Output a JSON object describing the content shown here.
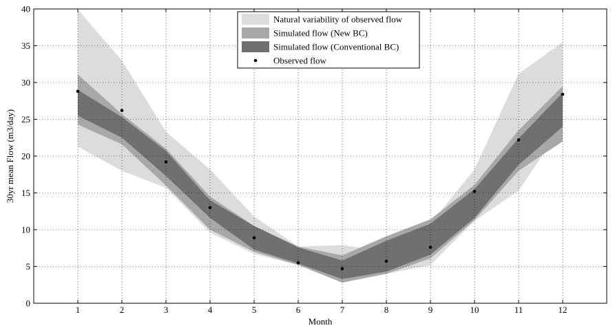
{
  "chart_data": {
    "type": "area",
    "xlabel": "Month",
    "ylabel": "30yr mean Flow (m3/day)",
    "xlim": [
      0,
      13
    ],
    "ylim": [
      0,
      40
    ],
    "xticks": [
      1,
      2,
      3,
      4,
      5,
      6,
      7,
      8,
      9,
      10,
      11,
      12
    ],
    "yticks": [
      0,
      5,
      10,
      15,
      20,
      25,
      30,
      35,
      40
    ],
    "grid": true,
    "legend_position": "top-center",
    "x": [
      1,
      2,
      3,
      4,
      5,
      6,
      7,
      8,
      9,
      10,
      11,
      12
    ],
    "series": [
      {
        "name": "Natural variability of observed flow",
        "kind": "band",
        "color": "#dcdcdc",
        "upper": [
          39.9,
          33,
          23.3,
          18.2,
          11.8,
          7.7,
          7.9,
          7.1,
          10.8,
          18.2,
          31.2,
          35.5
        ],
        "lower": [
          21.3,
          18,
          15.7,
          9.6,
          6.7,
          5.2,
          3.0,
          4.0,
          5.2,
          11.2,
          15.3,
          24.2
        ]
      },
      {
        "name": "Simulated flow (New BC)",
        "kind": "band",
        "color": "#a8a8a8",
        "upper": [
          31.1,
          25.7,
          21.0,
          14.5,
          10.5,
          7.7,
          6.5,
          9.1,
          11.4,
          16.1,
          23.5,
          29.5
        ],
        "lower": [
          24.3,
          21.6,
          16.0,
          10.0,
          7.0,
          5.2,
          2.8,
          4.0,
          6.1,
          11.3,
          18.0,
          22.0
        ]
      },
      {
        "name": "Simulated flow (Conventional BC)",
        "kind": "band",
        "color": "#707070",
        "upper": [
          29.0,
          25.3,
          20.7,
          14.0,
          10.5,
          7.6,
          5.8,
          8.5,
          10.8,
          15.5,
          22.4,
          28.6
        ],
        "lower": [
          25.5,
          22.5,
          17.3,
          11.6,
          7.3,
          5.4,
          3.3,
          4.3,
          6.6,
          11.6,
          18.8,
          24.0
        ]
      },
      {
        "name": "Observed flow",
        "kind": "points",
        "color": "#000000",
        "values": [
          28.8,
          26.2,
          19.2,
          13.0,
          8.9,
          5.5,
          4.7,
          5.7,
          7.6,
          15.2,
          22.2,
          28.4
        ]
      }
    ]
  }
}
